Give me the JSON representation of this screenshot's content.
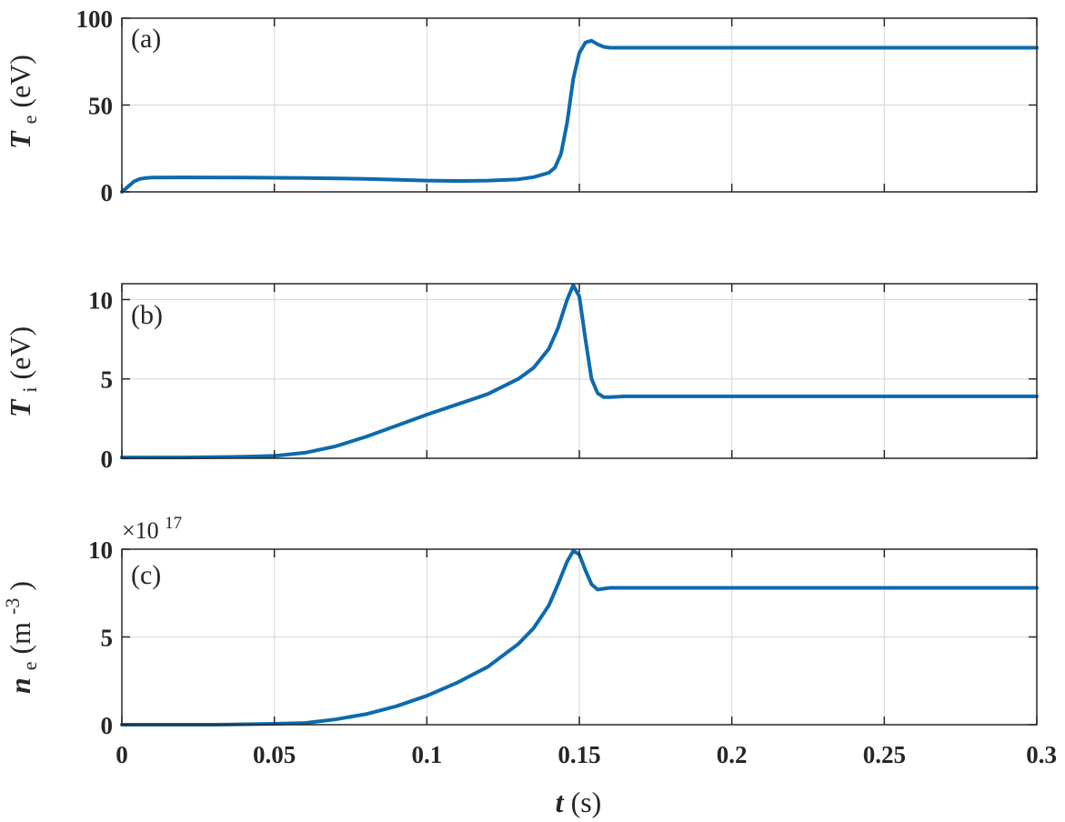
{
  "colors": {
    "line": "#0d6aad",
    "axis": "#262626",
    "grid": "#dcdcdc",
    "background": "#ffffff"
  },
  "x_axis": {
    "var": "t",
    "unit": " (s)",
    "tick_labels": [
      "0",
      "0.05",
      "0.1",
      "0.15",
      "0.2",
      "0.25",
      "0.3"
    ]
  },
  "chart_data": [
    {
      "type": "line",
      "tag": "(a)",
      "ylabel": {
        "var": "T",
        "sub": "e",
        "unit": " (eV)"
      },
      "xlim": [
        0,
        0.3
      ],
      "ylim": [
        0,
        100
      ],
      "yticks": [
        0,
        50,
        100
      ],
      "ytick_labels": [
        "0",
        "50",
        "100"
      ],
      "grid": true,
      "series": [
        {
          "x": [
            0,
            0.002,
            0.004,
            0.006,
            0.008,
            0.01,
            0.02,
            0.04,
            0.06,
            0.08,
            0.09,
            0.1,
            0.11,
            0.12,
            0.13,
            0.135,
            0.14,
            0.142,
            0.144,
            0.146,
            0.148,
            0.15,
            0.152,
            0.154,
            0.156,
            0.158,
            0.16,
            0.162,
            0.165,
            0.17,
            0.2,
            0.25,
            0.3
          ],
          "y": [
            0,
            3,
            6,
            7.5,
            8,
            8.2,
            8.3,
            8.2,
            8,
            7.5,
            7,
            6.5,
            6.3,
            6.5,
            7.2,
            8.5,
            11,
            14,
            22,
            40,
            65,
            80,
            86,
            87,
            85,
            83.5,
            83,
            83,
            83,
            83,
            83,
            83,
            83
          ]
        }
      ]
    },
    {
      "type": "line",
      "tag": "(b)",
      "ylabel": {
        "var": "T",
        "sub": "i",
        "unit": " (eV)"
      },
      "xlim": [
        0,
        0.3
      ],
      "ylim": [
        0,
        11
      ],
      "yticks": [
        0,
        5,
        10
      ],
      "ytick_labels": [
        "0",
        "5",
        "10"
      ],
      "grid": true,
      "series": [
        {
          "x": [
            0,
            0.02,
            0.04,
            0.05,
            0.06,
            0.07,
            0.08,
            0.09,
            0.1,
            0.11,
            0.12,
            0.13,
            0.135,
            0.14,
            0.143,
            0.146,
            0.148,
            0.15,
            0.152,
            0.154,
            0.156,
            0.158,
            0.16,
            0.165,
            0.17,
            0.2,
            0.25,
            0.3
          ],
          "y": [
            0.05,
            0.05,
            0.1,
            0.15,
            0.35,
            0.75,
            1.35,
            2.05,
            2.75,
            3.4,
            4.05,
            5,
            5.7,
            6.9,
            8.2,
            10,
            10.9,
            10.2,
            7.5,
            5,
            4.1,
            3.85,
            3.85,
            3.9,
            3.9,
            3.9,
            3.9,
            3.9
          ]
        }
      ]
    },
    {
      "type": "line",
      "tag": "(c)",
      "ylabel": {
        "var": "n",
        "sub": "e",
        "unit": " (m",
        "unit_sup": "-3",
        "unit_end": ")"
      },
      "exponent": {
        "prefix": "×10",
        "power": "17"
      },
      "xlim": [
        0,
        0.3
      ],
      "ylim": [
        0,
        10
      ],
      "yticks": [
        0,
        5,
        10
      ],
      "ytick_labels": [
        "0",
        "5",
        "10"
      ],
      "grid": true,
      "series": [
        {
          "x": [
            0,
            0.03,
            0.05,
            0.06,
            0.07,
            0.08,
            0.09,
            0.1,
            0.11,
            0.12,
            0.13,
            0.135,
            0.14,
            0.143,
            0.146,
            0.148,
            0.15,
            0.152,
            0.154,
            0.156,
            0.158,
            0.16,
            0.165,
            0.17,
            0.2,
            0.25,
            0.3
          ],
          "y": [
            0,
            0,
            0.05,
            0.1,
            0.3,
            0.6,
            1.05,
            1.65,
            2.4,
            3.3,
            4.6,
            5.5,
            6.8,
            8,
            9.3,
            9.9,
            9.7,
            8.8,
            8,
            7.7,
            7.75,
            7.8,
            7.8,
            7.8,
            7.8,
            7.8,
            7.8
          ]
        }
      ]
    }
  ]
}
